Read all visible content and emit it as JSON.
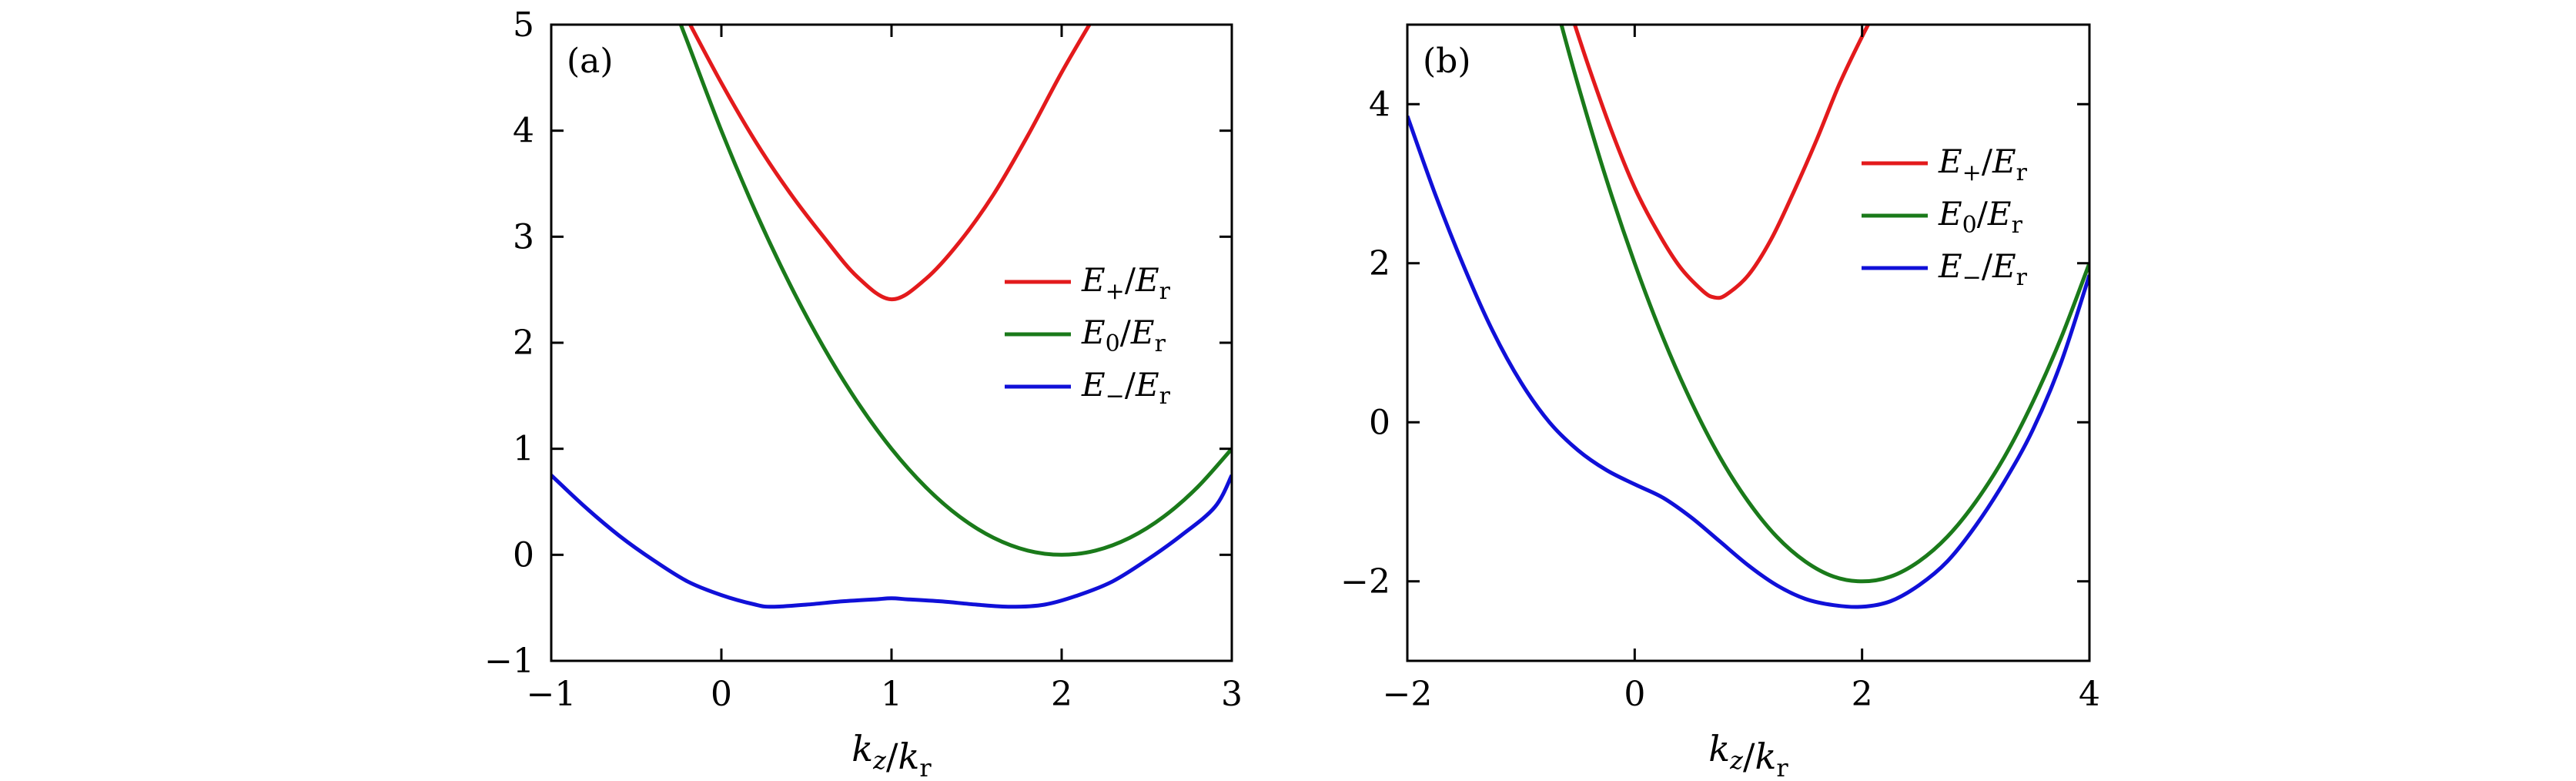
{
  "chart_data": [
    {
      "type": "line",
      "panel_label": "(a)",
      "xlabel": "kz/kr",
      "ylabel": "",
      "xlim": [
        -1,
        3
      ],
      "ylim": [
        -1,
        5
      ],
      "xticks": [
        "−1",
        "0",
        "1",
        "2",
        "3"
      ],
      "yticks": [
        "−1",
        "0",
        "1",
        "2",
        "3",
        "4",
        "5"
      ],
      "legend_position": "right",
      "series": [
        {
          "name": "E+/Er",
          "color": "#e31a1c",
          "x": [
            -0.2,
            0.0,
            0.2,
            0.4,
            0.6,
            0.8,
            1.0,
            1.2,
            1.4,
            1.6,
            1.8,
            2.0,
            2.2
          ],
          "y": [
            5.05,
            4.45,
            3.9,
            3.42,
            3.0,
            2.62,
            2.41,
            2.6,
            2.95,
            3.4,
            3.95,
            4.55,
            5.1
          ]
        },
        {
          "name": "E0/Er",
          "color": "#1a7a1a",
          "x": [
            -0.3,
            -0.2,
            0.0,
            0.2,
            0.4,
            0.6,
            0.8,
            1.0,
            1.2,
            1.4,
            1.6,
            1.8,
            2.0,
            2.2,
            2.4,
            2.6,
            2.8,
            3.0
          ],
          "y": [
            5.25,
            4.84,
            4.0,
            3.24,
            2.56,
            1.96,
            1.44,
            1.0,
            0.64,
            0.36,
            0.16,
            0.04,
            0.0,
            0.04,
            0.16,
            0.36,
            0.64,
            1.0
          ]
        },
        {
          "name": "E−/Er",
          "color": "#1010d8",
          "x": [
            -1.0,
            -0.8,
            -0.6,
            -0.4,
            -0.2,
            0.0,
            0.2,
            0.3,
            0.5,
            0.7,
            0.9,
            1.0,
            1.1,
            1.3,
            1.5,
            1.7,
            1.9,
            2.1,
            2.3,
            2.5,
            2.7,
            2.9,
            3.0
          ],
          "y": [
            0.75,
            0.45,
            0.18,
            -0.05,
            -0.25,
            -0.38,
            -0.47,
            -0.49,
            -0.47,
            -0.44,
            -0.42,
            -0.41,
            -0.42,
            -0.44,
            -0.47,
            -0.49,
            -0.47,
            -0.38,
            -0.25,
            -0.05,
            0.18,
            0.45,
            0.75
          ]
        }
      ]
    },
    {
      "type": "line",
      "panel_label": "(b)",
      "xlabel": "kz/kr",
      "ylabel": "",
      "xlim": [
        -2,
        4
      ],
      "ylim": [
        -3,
        5
      ],
      "xticks": [
        "−2",
        "0",
        "2",
        "4"
      ],
      "yticks": [
        "−2",
        "0",
        "2",
        "4"
      ],
      "legend_position": "top-right",
      "series": [
        {
          "name": "E+/Er",
          "color": "#e31a1c",
          "x": [
            -0.55,
            -0.4,
            -0.2,
            0.0,
            0.2,
            0.4,
            0.6,
            0.7,
            0.8,
            1.0,
            1.2,
            1.4,
            1.6,
            1.8,
            2.0,
            2.2
          ],
          "y": [
            5.1,
            4.45,
            3.65,
            2.95,
            2.4,
            1.95,
            1.65,
            1.57,
            1.6,
            1.85,
            2.3,
            2.9,
            3.55,
            4.25,
            4.85,
            5.4
          ]
        },
        {
          "name": "E0/Er",
          "color": "#1a7a1a",
          "x": [
            -0.7,
            -0.5,
            -0.25,
            0.0,
            0.25,
            0.5,
            0.75,
            1.0,
            1.25,
            1.5,
            1.75,
            2.0,
            2.25,
            2.5,
            2.75,
            3.0,
            3.25,
            3.5,
            3.75,
            4.0
          ],
          "y": [
            5.29,
            4.25,
            3.06,
            2.0,
            1.06,
            0.25,
            -0.44,
            -1.0,
            -1.44,
            -1.75,
            -1.94,
            -2.0,
            -1.94,
            -1.75,
            -1.44,
            -1.0,
            -0.44,
            0.25,
            1.06,
            2.0
          ]
        },
        {
          "name": "E−/Er",
          "color": "#1010d8",
          "x": [
            -2.0,
            -1.75,
            -1.5,
            -1.25,
            -1.0,
            -0.75,
            -0.5,
            -0.25,
            0.0,
            0.25,
            0.5,
            0.75,
            1.0,
            1.25,
            1.5,
            1.75,
            2.0,
            2.25,
            2.5,
            2.75,
            3.0,
            3.25,
            3.5,
            3.75,
            4.0
          ],
          "y": [
            3.85,
            2.85,
            1.95,
            1.15,
            0.5,
            0.0,
            -0.35,
            -0.6,
            -0.78,
            -0.95,
            -1.2,
            -1.5,
            -1.8,
            -2.05,
            -2.22,
            -2.3,
            -2.32,
            -2.25,
            -2.05,
            -1.75,
            -1.3,
            -0.75,
            -0.1,
            0.75,
            1.85
          ]
        }
      ]
    }
  ]
}
